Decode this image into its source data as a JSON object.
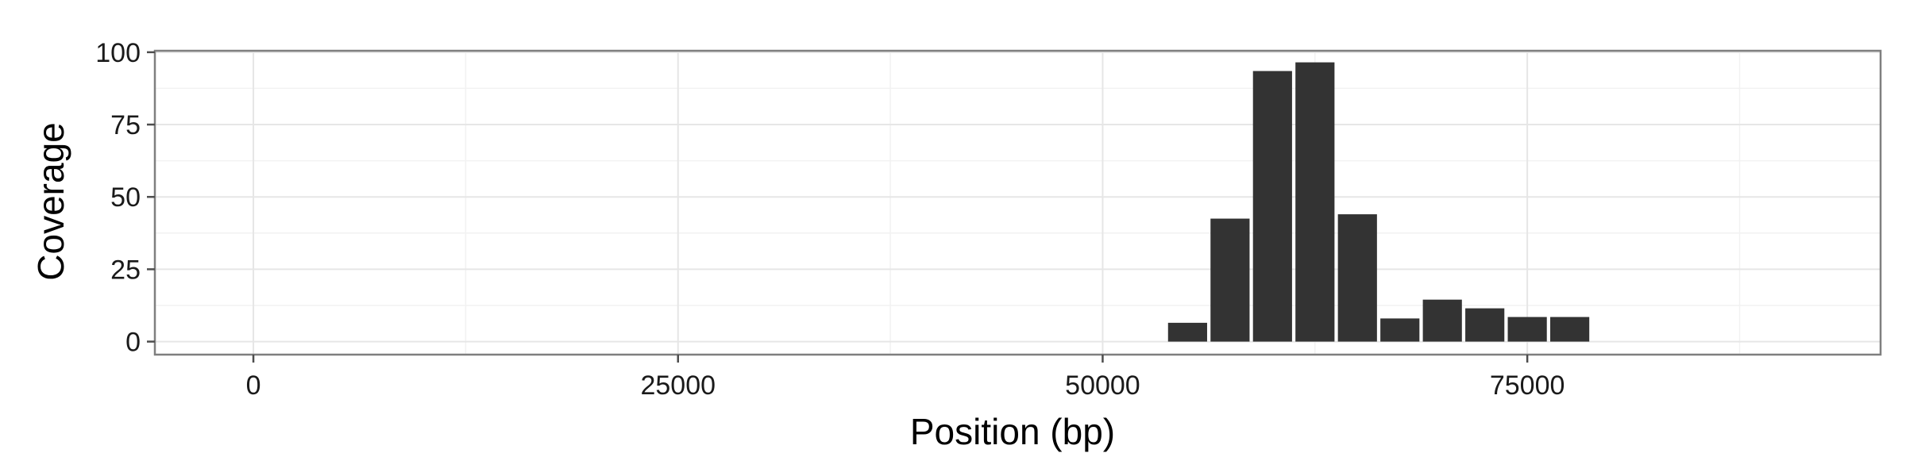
{
  "chart_data": {
    "type": "bar",
    "title": "",
    "xlabel": "Position (bp)",
    "ylabel": "Coverage",
    "xlim": [
      -5800,
      95800
    ],
    "ylim": [
      -4.5,
      100.5
    ],
    "x_ticks": [
      0,
      25000,
      50000,
      75000
    ],
    "x_tick_labels": [
      "0",
      "25000",
      "50000",
      "75000"
    ],
    "y_ticks": [
      0,
      25,
      50,
      75,
      100
    ],
    "y_tick_labels": [
      "0",
      "25",
      "50",
      "75",
      "100"
    ],
    "grid": true,
    "legend": "none",
    "bar_width": 2300,
    "x": [
      55000,
      57500,
      60000,
      62500,
      65000,
      67500,
      70000,
      72500,
      75000,
      77500
    ],
    "values": [
      6.5,
      42.5,
      93.5,
      96.5,
      44,
      8,
      14.5,
      11.5,
      8.5,
      8.5
    ],
    "colors": {
      "bar": "#333333",
      "panel_background": "#ffffff",
      "panel_border": "#7f7f7f",
      "grid_major": "#e6e6e6",
      "grid_minor": "#f2f2f2",
      "tick": "#4d4d4d"
    }
  }
}
